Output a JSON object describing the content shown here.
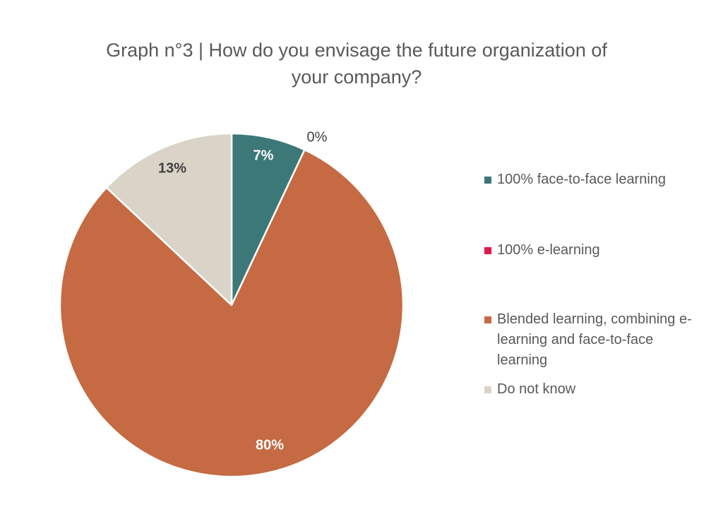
{
  "chart_data": {
    "type": "pie",
    "title": "Graph n°3 | How do you envisage the future organization of your company?",
    "title_lines": [
      "Graph n°3 | How do you envisage the future organization of",
      "your company?"
    ],
    "slices": [
      {
        "label": "100% face-to-face learning",
        "value": 7,
        "data_label": "7%",
        "color": "#3d7878"
      },
      {
        "label": "100% e-learning",
        "value": 0,
        "data_label": "0%",
        "color": "#e0194a"
      },
      {
        "label": "Blended learning, combining e-learning and face-to-face learning",
        "value": 80,
        "data_label": "80%",
        "color": "#c56a42"
      },
      {
        "label": "Do not know",
        "value": 13,
        "data_label": "13%",
        "color": "#d9d4c7"
      }
    ],
    "legend": {
      "placement": "right",
      "entries": [
        {
          "lines": [
            "100% face-to-face learning"
          ]
        },
        {
          "lines": [
            "100% e-learning"
          ]
        },
        {
          "lines": [
            "Blended learning, combining e-",
            "learning and face-to-face",
            "learning"
          ]
        },
        {
          "lines": [
            "Do not know"
          ]
        }
      ]
    },
    "start_angle_deg": 0,
    "direction": "clockwise"
  }
}
